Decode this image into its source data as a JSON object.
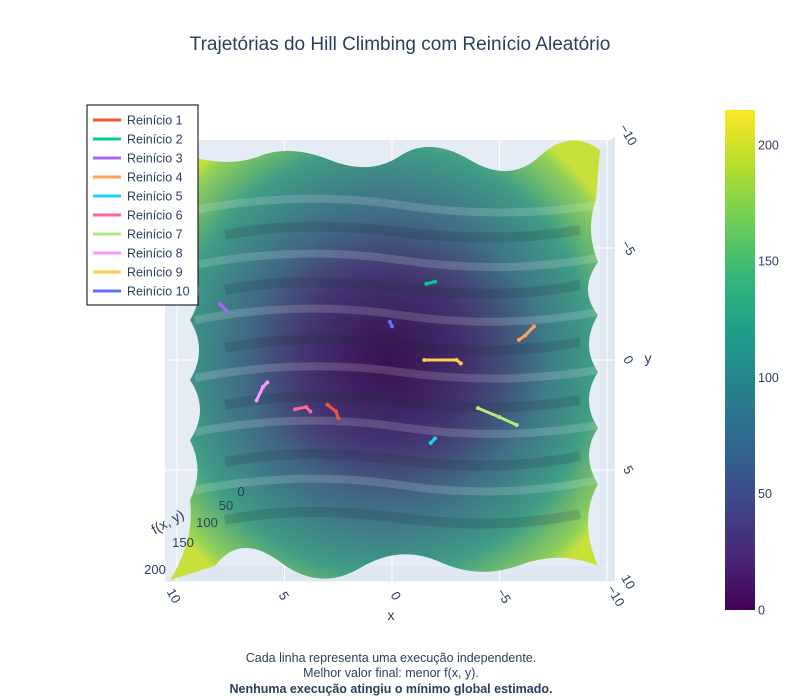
{
  "chart_data": {
    "type": "surface",
    "title": "Trajetórias do Hill Climbing com Reinício Aleatório",
    "xlabel": "x",
    "ylabel": "y",
    "zlabel": "f(x, y)",
    "x_ticks": [
      "10",
      "5",
      "0",
      "−5",
      "−10"
    ],
    "y_ticks": [
      "−10",
      "−5",
      "0",
      "5",
      "10"
    ],
    "z_ticks": [
      "0",
      "50",
      "100",
      "150",
      "200"
    ],
    "xlim": [
      -10,
      10
    ],
    "ylim": [
      -10,
      10
    ],
    "zlim": [
      0,
      215
    ],
    "colorbar": {
      "colorscale": "viridis",
      "ticks": [
        "0",
        "50",
        "100",
        "150",
        "200"
      ],
      "range": [
        0,
        215
      ]
    },
    "legend_position": "top-left",
    "series": [
      {
        "name": "Reinício 1",
        "color": "#ef553b",
        "points": [
          [
            3.0,
            4.0
          ],
          [
            2.6,
            4.6
          ],
          [
            2.5,
            5.2
          ]
        ]
      },
      {
        "name": "Reinício 2",
        "color": "#00cc96",
        "points": [
          [
            -2.0,
            -7.0
          ],
          [
            -1.6,
            -6.8
          ]
        ]
      },
      {
        "name": "Reinício 3",
        "color": "#ab63fa",
        "points": [
          [
            8.0,
            -5.0
          ],
          [
            7.7,
            -4.4
          ]
        ]
      },
      {
        "name": "Reinício 4",
        "color": "#ffa15a",
        "points": [
          [
            -6.6,
            -3.0
          ],
          [
            -6.2,
            -2.2
          ],
          [
            -5.9,
            -1.8
          ]
        ]
      },
      {
        "name": "Reinício 5",
        "color": "#19d3f3",
        "points": [
          [
            -1.8,
            7.4
          ],
          [
            -2.0,
            7.0
          ]
        ]
      },
      {
        "name": "Reinício 6",
        "color": "#ff6692",
        "points": [
          [
            4.5,
            4.4
          ],
          [
            4.0,
            4.2
          ],
          [
            3.8,
            4.6
          ]
        ]
      },
      {
        "name": "Reinício 7",
        "color": "#b6e880",
        "points": [
          [
            -4.0,
            4.3
          ],
          [
            -5.0,
            5.1
          ],
          [
            -5.8,
            5.8
          ]
        ]
      },
      {
        "name": "Reinício 8",
        "color": "#ff97ff",
        "points": [
          [
            6.3,
            3.6
          ],
          [
            6.0,
            2.4
          ],
          [
            5.8,
            2.0
          ]
        ]
      },
      {
        "name": "Reinício 9",
        "color": "#fecb52",
        "points": [
          [
            -1.5,
            0.0
          ],
          [
            -3.0,
            0.0
          ],
          [
            -3.2,
            0.3
          ]
        ]
      },
      {
        "name": "Reinício 10",
        "color": "#636efa",
        "points": [
          [
            0.1,
            -3.4
          ],
          [
            0.0,
            -3.0
          ]
        ]
      }
    ],
    "annotations": [
      "Cada linha representa uma execução independente.",
      "Melhor valor final: menor f(x, y).",
      "Nenhuma execução atingiu o mínimo global estimado."
    ]
  }
}
